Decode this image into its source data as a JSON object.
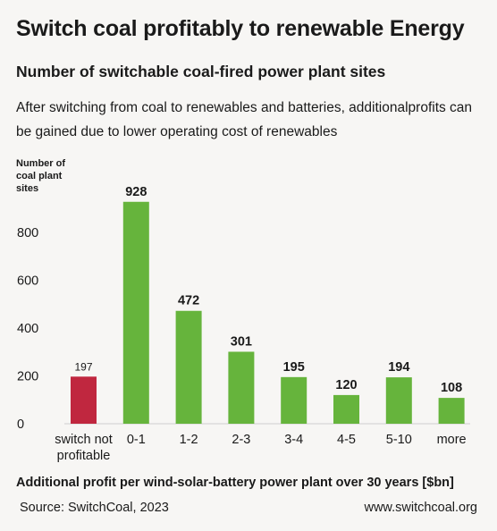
{
  "header": {
    "title": "Switch coal profitably to renewable Energy",
    "subtitle": "Number of switchable coal-fired power plant sites",
    "description": "After switching from coal to renewables and batteries, additionalprofits can be gained due to lower operating cost of renewables"
  },
  "footer": {
    "source": "Source: SwitchCoal, 2023",
    "website": "www.switchcoal.org"
  },
  "colors": {
    "not_profitable": "#c0273f",
    "profitable": "#66b43c",
    "background": "#f7f6f4",
    "gridline": "#d8d8d8"
  },
  "chart_data": {
    "type": "bar",
    "title": "Number of switchable coal-fired power plant sites",
    "ylabel": "Number of\ncoal plant\nsites",
    "xlabel": "Additional profit per wind-solar-battery power plant over 30 years [$bn]",
    "ylim": [
      0,
      1000
    ],
    "yticks": [
      0,
      200,
      400,
      600,
      800
    ],
    "grid": false,
    "categories": [
      "switch not profitable",
      "0-1",
      "1-2",
      "2-3",
      "3-4",
      "4-5",
      "5-10",
      "more"
    ],
    "category_lines": [
      [
        "switch not",
        "profitable"
      ],
      [
        "0-1"
      ],
      [
        "1-2"
      ],
      [
        "2-3"
      ],
      [
        "3-4"
      ],
      [
        "4-5"
      ],
      [
        "5-10"
      ],
      [
        "more"
      ]
    ],
    "values": [
      197,
      928,
      472,
      301,
      195,
      120,
      194,
      108
    ],
    "value_labels": [
      "197",
      "928",
      "472",
      "301",
      "195",
      "120",
      "194",
      "108"
    ],
    "bar_colors": [
      "#c0273f",
      "#66b43c",
      "#66b43c",
      "#66b43c",
      "#66b43c",
      "#66b43c",
      "#66b43c",
      "#66b43c"
    ]
  }
}
